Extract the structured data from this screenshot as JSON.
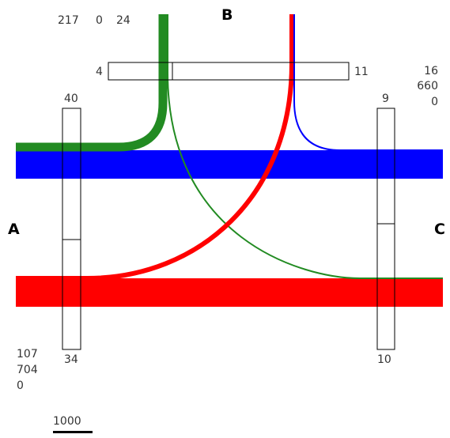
{
  "nodes": {
    "a": "A",
    "b": "B",
    "c": "C"
  },
  "colors": {
    "green": "#228b22",
    "red": "#ff0000",
    "blue": "#0000ff",
    "box_stroke": "#000000"
  },
  "node_b": {
    "stats": [
      "217",
      "0",
      "24"
    ],
    "bar_left_label": "4",
    "bar_right_label": "11"
  },
  "node_a": {
    "bar_top_label": "40",
    "bar_bottom_label": "34",
    "totals": [
      "107",
      "704",
      "0"
    ]
  },
  "node_c": {
    "bar_top_label": "9",
    "bar_bottom_label": "10",
    "totals": [
      "16",
      "660",
      "0"
    ]
  },
  "scale": {
    "label": "1000"
  }
}
